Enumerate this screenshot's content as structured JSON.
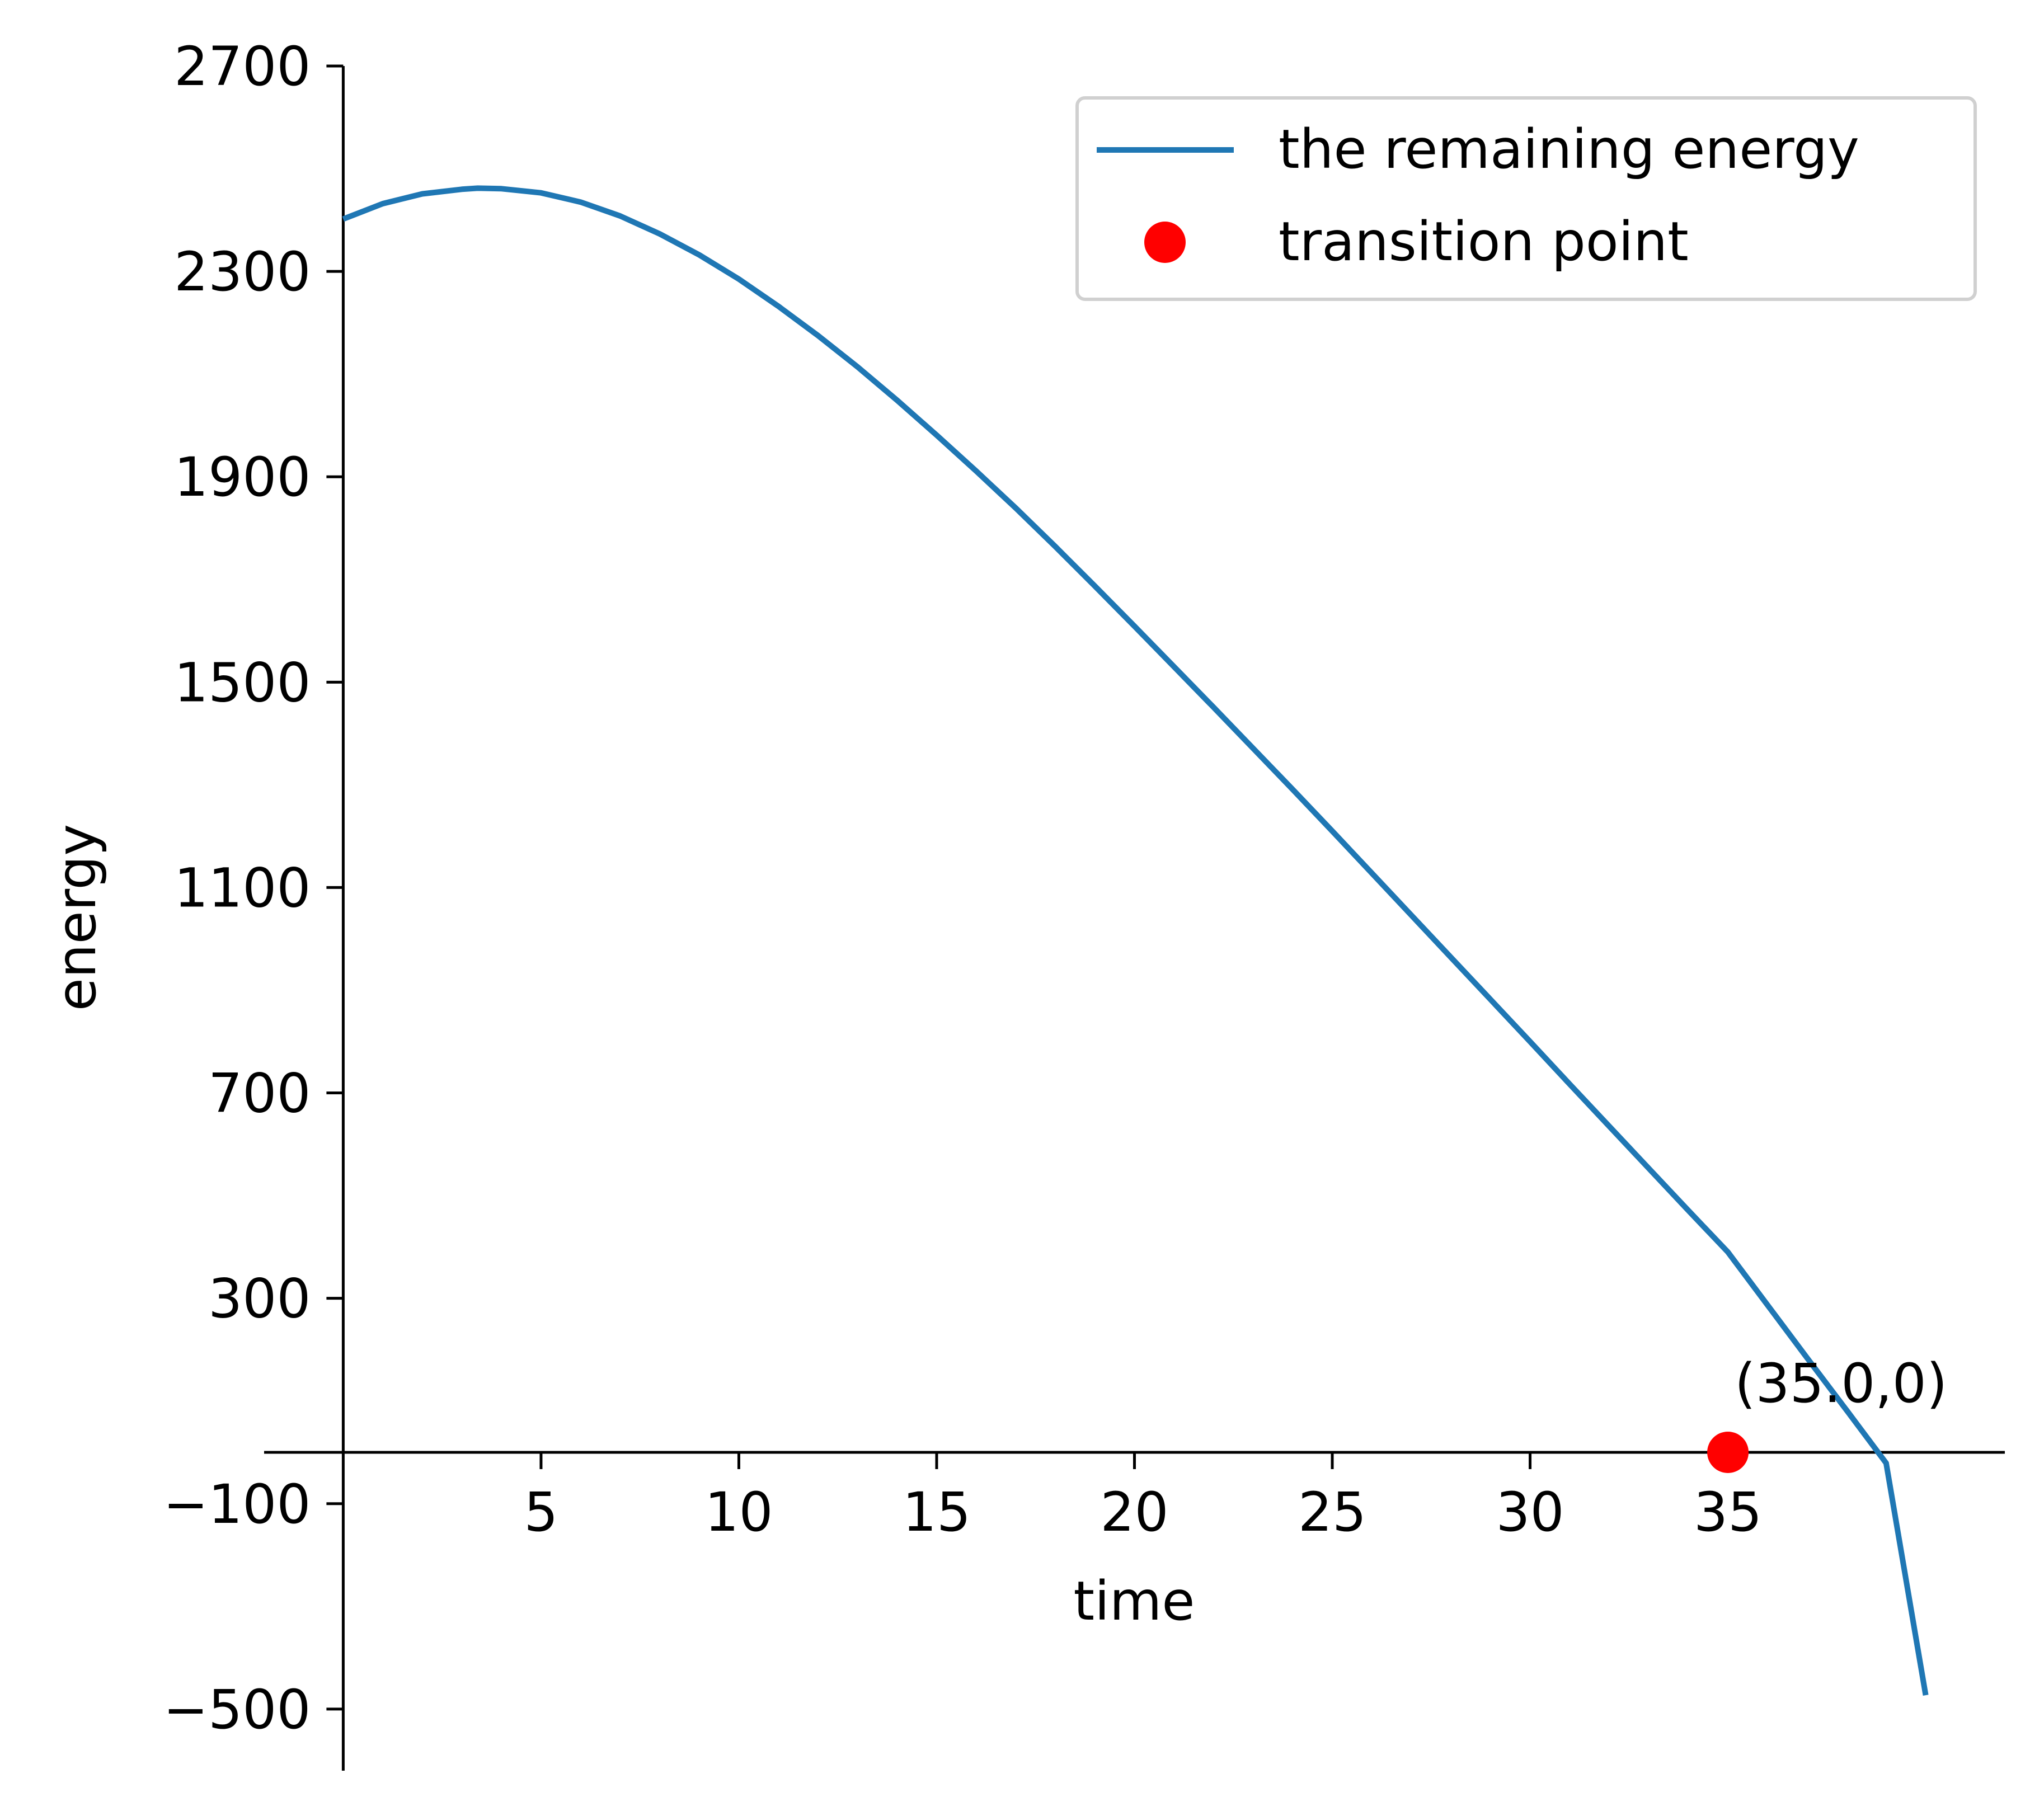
{
  "chart_data": {
    "type": "line",
    "title": "",
    "xlabel": "time",
    "ylabel": "energy",
    "xlim": [
      -2,
      42
    ],
    "ylim": [
      -620,
      2700
    ],
    "x_ticks": [
      5,
      10,
      15,
      20,
      25,
      30,
      35
    ],
    "x_tick_labels": [
      "5",
      "10",
      "15",
      "20",
      "25",
      "30",
      "35"
    ],
    "y_ticks": [
      2700,
      2300,
      1900,
      1500,
      1100,
      700,
      300,
      -100,
      -500
    ],
    "y_tick_labels": [
      "2700",
      "2300",
      "1900",
      "1500",
      "1100",
      "700",
      "300",
      "−100",
      "−500"
    ],
    "grid": false,
    "legend_position": "top-right",
    "colors": {
      "line": "#1f77b4",
      "marker": "#ff0000",
      "axes": "#000000"
    },
    "series": [
      {
        "name": "the remaining energy",
        "kind": "line",
        "x": [
          0,
          1,
          2,
          3,
          3.4,
          4,
          5,
          6,
          7,
          8,
          9,
          10,
          11,
          12,
          13,
          14,
          15,
          16,
          17,
          18,
          19,
          20,
          21,
          22,
          23,
          24,
          25,
          26,
          27,
          28,
          29,
          30,
          31,
          32,
          33,
          34,
          35,
          36,
          37,
          38,
          39,
          40
        ],
        "y": [
          2402,
          2432,
          2451,
          2460,
          2462,
          2461,
          2453,
          2435,
          2408,
          2373,
          2332,
          2285,
          2232,
          2175,
          2114,
          2049,
          1981,
          1911,
          1839,
          1764,
          1687,
          1609,
          1530,
          1451,
          1371,
          1291,
          1210,
          1128,
          1046,
          964,
          882,
          800,
          717,
          635,
          553,
          471,
          390,
          287,
          184,
          82,
          -21,
          -473
        ]
      },
      {
        "name": "transition point",
        "kind": "point",
        "x": [
          35.0
        ],
        "y": [
          0
        ]
      }
    ],
    "annotations": [
      {
        "text": "(35.0,0)",
        "x": 35.0,
        "y": 0
      }
    ]
  }
}
